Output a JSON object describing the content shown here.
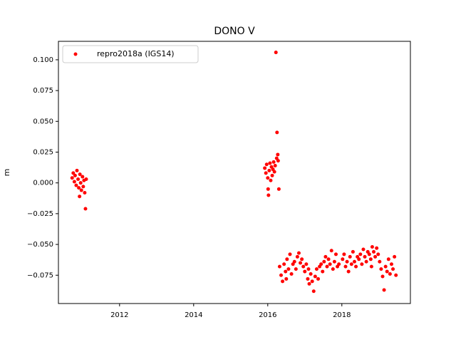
{
  "chart_data": {
    "type": "scatter",
    "title": "DONO V",
    "y_label": "m",
    "x": [
      2010.72,
      2010.75,
      2010.78,
      2010.8,
      2010.83,
      2010.85,
      2010.88,
      2010.9,
      2010.93,
      2010.95,
      2010.97,
      2011.0,
      2011.02,
      2011.04,
      2011.06,
      2011.08,
      2011.1,
      2010.92,
      2015.92,
      2015.95,
      2015.97,
      2016.0,
      2016.02,
      2016.04,
      2016.06,
      2016.08,
      2016.1,
      2016.12,
      2016.14,
      2016.16,
      2016.18,
      2016.2,
      2016.22,
      2016.24,
      2016.25,
      2016.27,
      2016.28,
      2016.3,
      2016.01,
      2016.32,
      2016.36,
      2016.4,
      2016.44,
      2016.48,
      2016.52,
      2016.56,
      2016.6,
      2016.64,
      2016.68,
      2016.72,
      2016.76,
      2016.8,
      2016.84,
      2016.88,
      2016.92,
      2016.96,
      2017.0,
      2017.04,
      2017.08,
      2017.12,
      2017.16,
      2017.2,
      2017.24,
      2017.28,
      2017.32,
      2017.36,
      2017.4,
      2017.44,
      2017.48,
      2017.52,
      2017.56,
      2017.6,
      2017.64,
      2017.68,
      2017.72,
      2017.76,
      2017.8,
      2017.84,
      2017.88,
      2017.92,
      2018.02,
      2018.06,
      2018.1,
      2018.14,
      2018.18,
      2018.22,
      2018.26,
      2018.3,
      2018.34,
      2018.38,
      2018.42,
      2018.46,
      2018.5,
      2018.54,
      2018.58,
      2018.62,
      2018.66,
      2018.7,
      2018.74,
      2018.78,
      2018.82,
      2018.86,
      2018.9,
      2018.94,
      2018.98,
      2019.02,
      2019.06,
      2019.1,
      2019.14,
      2019.18,
      2019.22,
      2019.26,
      2019.3,
      2019.34,
      2019.38,
      2019.42,
      2019.46,
      2017.1,
      2016.5,
      2018.8
    ],
    "series": [
      {
        "name": "repro2018a (IGS14)",
        "color": "#ff0000",
        "values": [
          0.004,
          0.008,
          0.001,
          0.006,
          -0.002,
          0.01,
          0.003,
          -0.004,
          0.007,
          0.0,
          -0.006,
          0.005,
          -0.003,
          0.002,
          -0.008,
          -0.021,
          0.003,
          -0.011,
          0.012,
          0.008,
          0.015,
          0.004,
          -0.01,
          0.01,
          0.016,
          0.002,
          0.013,
          0.006,
          0.011,
          0.017,
          0.009,
          0.014,
          0.106,
          0.02,
          0.041,
          0.023,
          0.018,
          -0.005,
          -0.005,
          -0.068,
          -0.075,
          -0.08,
          -0.066,
          -0.072,
          -0.062,
          -0.07,
          -0.058,
          -0.074,
          -0.066,
          -0.064,
          -0.07,
          -0.06,
          -0.057,
          -0.065,
          -0.062,
          -0.068,
          -0.072,
          -0.066,
          -0.078,
          -0.082,
          -0.074,
          -0.08,
          -0.088,
          -0.076,
          -0.07,
          -0.078,
          -0.068,
          -0.066,
          -0.072,
          -0.064,
          -0.06,
          -0.068,
          -0.062,
          -0.066,
          -0.055,
          -0.07,
          -0.064,
          -0.058,
          -0.068,
          -0.066,
          -0.062,
          -0.058,
          -0.068,
          -0.064,
          -0.072,
          -0.06,
          -0.066,
          -0.056,
          -0.064,
          -0.068,
          -0.06,
          -0.062,
          -0.058,
          -0.066,
          -0.054,
          -0.06,
          -0.064,
          -0.056,
          -0.058,
          -0.062,
          -0.052,
          -0.056,
          -0.06,
          -0.053,
          -0.058,
          -0.064,
          -0.07,
          -0.076,
          -0.087,
          -0.068,
          -0.072,
          -0.062,
          -0.074,
          -0.066,
          -0.07,
          -0.06,
          -0.075,
          -0.07,
          -0.078,
          -0.068
        ]
      }
    ],
    "xlim": [
      2010.35,
      2019.85
    ],
    "xticks": [
      2012,
      2014,
      2016,
      2018
    ],
    "ylim": [
      -0.098,
      0.115
    ],
    "yticks": [
      {
        "value": -0.075,
        "label": "−0.075"
      },
      {
        "value": -0.05,
        "label": "−0.050"
      },
      {
        "value": -0.025,
        "label": "−0.025"
      },
      {
        "value": 0,
        "label": "0.000"
      },
      0.025,
      {
        "value": 0.05,
        "label": "0.050"
      },
      0.075,
      {
        "value": 0.1,
        "label": "0.100"
      }
    ],
    "legend": "upper left"
  }
}
